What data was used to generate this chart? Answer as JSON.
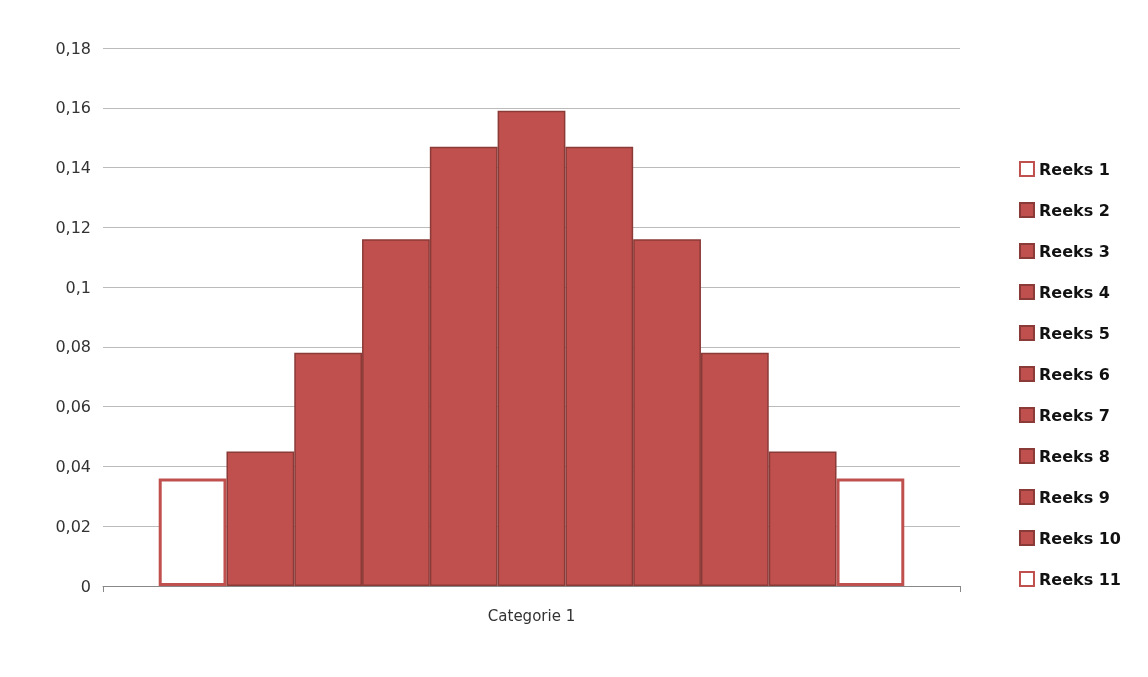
{
  "chart_data": {
    "type": "bar",
    "categories": [
      "Categorie 1"
    ],
    "series": [
      {
        "name": "Reeks 1",
        "color": "#ffffff",
        "values": [
          0.036
        ]
      },
      {
        "name": "Reeks 2",
        "color": "#c0504d",
        "values": [
          0.045
        ]
      },
      {
        "name": "Reeks 3",
        "color": "#c0504d",
        "values": [
          0.078
        ]
      },
      {
        "name": "Reeks 4",
        "color": "#c0504d",
        "values": [
          0.116
        ]
      },
      {
        "name": "Reeks 5",
        "color": "#c0504d",
        "values": [
          0.147
        ]
      },
      {
        "name": "Reeks 6",
        "color": "#c0504d",
        "values": [
          0.159
        ]
      },
      {
        "name": "Reeks 7",
        "color": "#c0504d",
        "values": [
          0.147
        ]
      },
      {
        "name": "Reeks 8",
        "color": "#c0504d",
        "values": [
          0.116
        ]
      },
      {
        "name": "Reeks 9",
        "color": "#c0504d",
        "values": [
          0.078
        ]
      },
      {
        "name": "Reeks 10",
        "color": "#c0504d",
        "values": [
          0.045
        ]
      },
      {
        "name": "Reeks 11",
        "color": "#ffffff",
        "values": [
          0.036
        ]
      }
    ],
    "ylim": [
      0,
      0.18
    ],
    "yticks": [
      0,
      {
        "value": 0.02,
        "label": "0,02"
      },
      {
        "value": 0.04,
        "label": "0,04"
      },
      {
        "value": 0.06,
        "label": "0,06"
      },
      {
        "value": 0.08,
        "label": "0,08"
      },
      {
        "value": 0.1,
        "label": "0,1"
      },
      {
        "value": 0.12,
        "label": "0,12"
      },
      {
        "value": 0.14,
        "label": "0,14"
      },
      {
        "value": 0.16,
        "label": "0,16"
      },
      {
        "value": 0.18,
        "label": "0,18"
      }
    ],
    "grid": "y",
    "legend": "right"
  }
}
